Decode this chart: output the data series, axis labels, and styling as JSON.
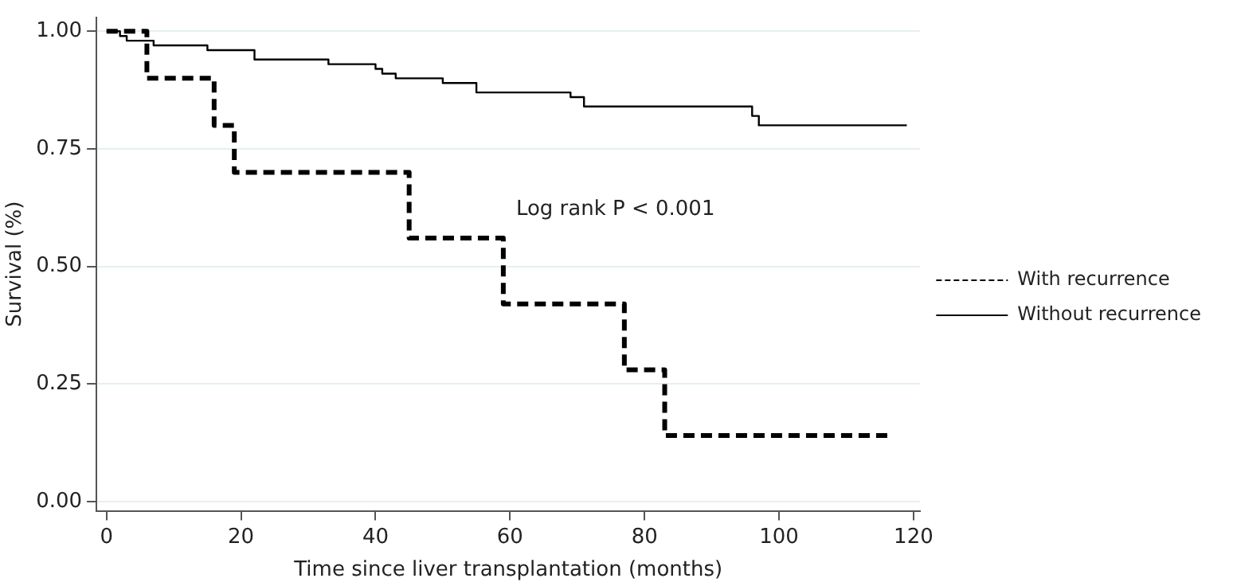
{
  "chart_data": {
    "type": "step",
    "xlabel": "Time since liver transplantation (months)",
    "ylabel": "Survival (%)",
    "xlim": [
      -1.5,
      121
    ],
    "ylim": [
      -0.02,
      1.03
    ],
    "xticks": [
      0,
      20,
      40,
      60,
      80,
      100,
      120
    ],
    "yticks": [
      {
        "value": 0,
        "label": "0.00"
      },
      {
        "value": 0.25,
        "label": "0.25"
      },
      {
        "value": 0.5,
        "label": "0.50"
      },
      {
        "value": 0.75,
        "label": "0.75"
      },
      {
        "value": 1,
        "label": "1.00"
      }
    ],
    "grid": "y",
    "legend": "right",
    "marker": "none",
    "annotations": [
      "Log rank P < 0.001"
    ],
    "series": [
      {
        "name": "With recurrence",
        "color": "#000000",
        "line_style": "dashed",
        "x": [
          0,
          6,
          16,
          19,
          45,
          59,
          77,
          83,
          117
        ],
        "values": [
          1.0,
          0.9,
          0.8,
          0.7,
          0.56,
          0.42,
          0.28,
          0.14,
          0.14
        ]
      },
      {
        "name": "Without recurrence",
        "color": "#000000",
        "line_style": "solid",
        "x": [
          0,
          2,
          3,
          7,
          15,
          22,
          33,
          40,
          41,
          43,
          50,
          55,
          69,
          71,
          96,
          97,
          119
        ],
        "values": [
          1.0,
          0.99,
          0.98,
          0.97,
          0.96,
          0.94,
          0.93,
          0.92,
          0.91,
          0.9,
          0.89,
          0.87,
          0.86,
          0.84,
          0.82,
          0.8,
          0.8
        ]
      }
    ]
  }
}
